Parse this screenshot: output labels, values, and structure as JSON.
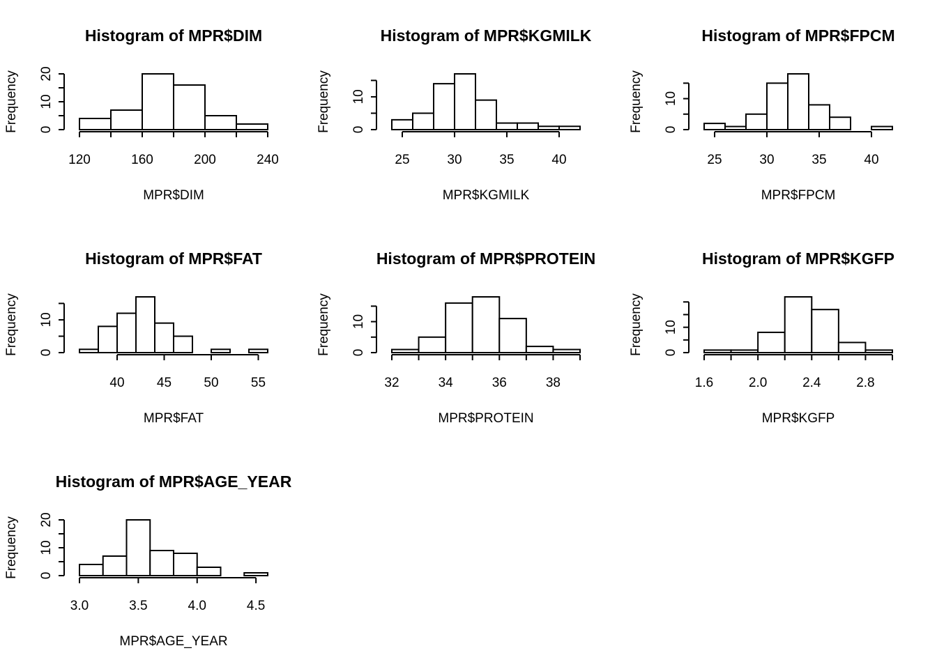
{
  "chart_data": [
    {
      "type": "histogram",
      "title": "Histogram of MPR$DIM",
      "xlabel": "MPR$DIM",
      "ylabel": "Frequency",
      "bins": [
        120,
        140,
        160,
        180,
        200,
        220,
        240
      ],
      "values": [
        4,
        7,
        20,
        16,
        5,
        2
      ],
      "xlim": [
        120,
        240
      ],
      "xticks": [
        120,
        160,
        200,
        240
      ],
      "xminorticks": [
        140,
        180,
        220
      ],
      "ylim": [
        0,
        20
      ],
      "yticks": [
        0,
        10,
        20
      ],
      "yminorticks": [
        5,
        15
      ],
      "color": "#ffffff"
    },
    {
      "type": "histogram",
      "title": "Histogram of MPR$KGMILK",
      "xlabel": "MPR$KGMILK",
      "ylabel": "Frequency",
      "bins": [
        24,
        26,
        28,
        30,
        32,
        34,
        36,
        38,
        40,
        42
      ],
      "values": [
        3,
        5,
        14,
        17,
        9,
        2,
        2,
        1,
        1
      ],
      "xlim": [
        24,
        42
      ],
      "xticks": [
        25,
        30,
        35,
        40
      ],
      "xminorticks": [],
      "ylim": [
        0,
        17
      ],
      "yticks": [
        0,
        10
      ],
      "yminorticks": [
        5,
        15
      ],
      "color": "#ffffff"
    },
    {
      "type": "histogram",
      "title": "Histogram of MPR$FPCM",
      "xlabel": "MPR$FPCM",
      "ylabel": "Frequency",
      "bins": [
        24,
        26,
        28,
        30,
        32,
        34,
        36,
        38,
        40,
        42
      ],
      "values": [
        2,
        1,
        5,
        15,
        18,
        8,
        4,
        0,
        1
      ],
      "xlim": [
        24,
        42
      ],
      "xticks": [
        25,
        30,
        35,
        40
      ],
      "xminorticks": [],
      "ylim": [
        0,
        18
      ],
      "yticks": [
        0,
        10
      ],
      "yminorticks": [
        5,
        15
      ],
      "color": "#ffffff"
    },
    {
      "type": "histogram",
      "title": "Histogram of MPR$FAT",
      "xlabel": "MPR$FAT",
      "ylabel": "Frequency",
      "bins": [
        36,
        38,
        40,
        42,
        44,
        46,
        48,
        50,
        52,
        54,
        56
      ],
      "values": [
        1,
        8,
        12,
        17,
        9,
        5,
        0,
        1,
        0,
        1
      ],
      "xlim": [
        36,
        56
      ],
      "xticks": [
        40,
        45,
        50,
        55
      ],
      "xminorticks": [],
      "ylim": [
        0,
        17
      ],
      "yticks": [
        0,
        10
      ],
      "yminorticks": [
        5,
        15
      ],
      "color": "#ffffff"
    },
    {
      "type": "histogram",
      "title": "Histogram of MPR$PROTEIN",
      "xlabel": "MPR$PROTEIN",
      "ylabel": "Frequency",
      "bins": [
        32,
        33,
        34,
        35,
        36,
        37,
        38,
        39
      ],
      "values": [
        1,
        5,
        16,
        18,
        11,
        2,
        1
      ],
      "xlim": [
        32,
        39
      ],
      "xticks": [
        32,
        34,
        36,
        38
      ],
      "xminorticks": [
        33,
        35,
        37,
        39
      ],
      "ylim": [
        0,
        18
      ],
      "yticks": [
        0,
        10
      ],
      "yminorticks": [
        5,
        15
      ],
      "color": "#ffffff"
    },
    {
      "type": "histogram",
      "title": "Histogram of MPR$KGFP",
      "xlabel": "MPR$KGFP",
      "ylabel": "Frequency",
      "bins": [
        1.6,
        1.8,
        2.0,
        2.2,
        2.4,
        2.6,
        2.8,
        3.0
      ],
      "values": [
        1,
        1,
        8,
        22,
        17,
        4,
        1
      ],
      "xlim": [
        1.6,
        3.0
      ],
      "xticks": [
        1.6,
        {
          "value": 2.0,
          "label": "2.0"
        },
        2.4,
        2.8
      ],
      "xminorticks": [
        1.8,
        2.2,
        2.6,
        3.0
      ],
      "ylim": [
        0,
        22
      ],
      "yticks": [
        0,
        10
      ],
      "yminorticks": [
        5,
        15,
        20
      ],
      "color": "#ffffff"
    },
    {
      "type": "histogram",
      "title": "Histogram of MPR$AGE_YEAR",
      "xlabel": "MPR$AGE_YEAR",
      "ylabel": "Frequency",
      "bins": [
        3.0,
        3.2,
        3.4,
        3.6,
        3.8,
        4.0,
        4.2,
        4.4,
        4.6
      ],
      "values": [
        4,
        7,
        20,
        9,
        8,
        3,
        0,
        1
      ],
      "xlim": [
        3.0,
        4.6
      ],
      "xticks": [
        {
          "value": 3.0,
          "label": "3.0"
        },
        3.5,
        {
          "value": 4.0,
          "label": "4.0"
        },
        4.5
      ],
      "xminorticks": [],
      "ylim": [
        0,
        20
      ],
      "yticks": [
        0,
        10,
        20
      ],
      "yminorticks": [
        5,
        15
      ],
      "color": "#ffffff"
    }
  ]
}
